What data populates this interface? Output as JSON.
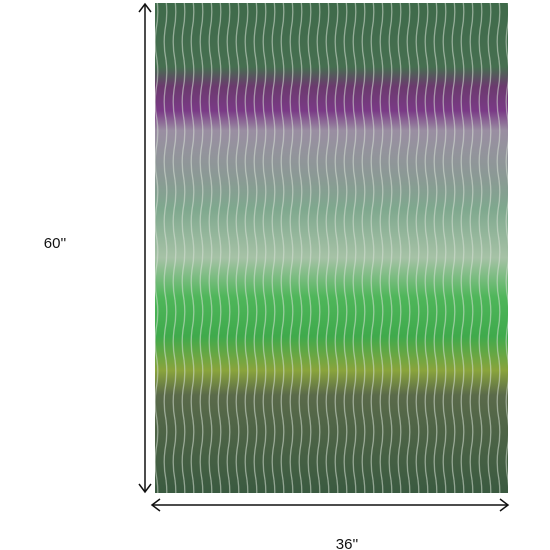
{
  "dimensions": {
    "height": "60''",
    "width": "36''"
  }
}
